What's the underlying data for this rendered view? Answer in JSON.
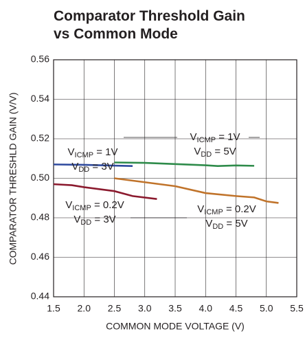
{
  "chart_data": {
    "type": "line",
    "title": [
      "Comparator Threshold Gain",
      "vs Common Mode"
    ],
    "x_label": "COMMON MODE VOLTAGE (V)",
    "y_label": "COMPARATOR THRESHLD GAIN (V/V)",
    "xlim": [
      1.5,
      5.5
    ],
    "xticks": [
      {
        "value": 1.5,
        "label": "1.5"
      },
      {
        "value": 2,
        "label": "2.0"
      },
      {
        "value": 2.5,
        "label": "2.5"
      },
      {
        "value": 3,
        "label": "3.0"
      },
      {
        "value": 3.5,
        "label": "3.5"
      },
      {
        "value": 4,
        "label": "4.0"
      },
      {
        "value": 4.5,
        "label": "4.5"
      },
      {
        "value": 5,
        "label": "5.0"
      },
      {
        "value": 5.5,
        "label": "5.5"
      }
    ],
    "ylim": [
      0.44,
      0.56
    ],
    "yticks": [
      0.44,
      0.46,
      0.48,
      {
        "value": 0.5,
        "label": "0.50"
      },
      0.52,
      0.54,
      0.56
    ],
    "grid": true,
    "series": [
      {
        "color": "#2e4a9e",
        "x": [
          1.5,
          2.0,
          2.5,
          2.8
        ],
        "values": [
          0.507,
          0.5068,
          0.5064,
          0.5062
        ]
      },
      {
        "color": "#8b1a2e",
        "x": [
          1.5,
          1.8,
          2.0,
          2.5,
          2.8,
          3.2
        ],
        "values": [
          0.497,
          0.4965,
          0.4955,
          0.4935,
          0.491,
          0.4895
        ]
      },
      {
        "color": "#2e8b4a",
        "x": [
          2.5,
          3.0,
          3.5,
          4.0,
          4.2,
          4.5,
          4.8
        ],
        "values": [
          0.508,
          0.5078,
          0.5072,
          0.5066,
          0.5062,
          0.5065,
          0.5063
        ]
      },
      {
        "color": "#c0732a",
        "x": [
          2.5,
          3.0,
          3.5,
          4.0,
          4.5,
          4.8,
          5.0,
          5.2
        ],
        "values": [
          0.5,
          0.498,
          0.496,
          0.4925,
          0.491,
          0.4903,
          0.4883,
          0.4875
        ]
      }
    ],
    "annotations": [
      [
        {
          "main": "V",
          "sub": "ICMP",
          "rest": " = 1V"
        },
        {
          "main": "V",
          "sub": "DD",
          "rest": " = 3V"
        }
      ],
      [
        {
          "main": "V",
          "sub": "ICMP",
          "rest": " = 1V"
        },
        {
          "main": "V",
          "sub": "DD",
          "rest": " = 5V"
        }
      ],
      [
        {
          "main": "V",
          "sub": "ICMP",
          "rest": " = 0.2V"
        },
        {
          "main": "V",
          "sub": "DD",
          "rest": " = 3V"
        }
      ],
      [
        {
          "main": "V",
          "sub": "ICMP",
          "rest": " = 0.2V"
        },
        {
          "main": "V",
          "sub": "DD",
          "rest": " = 5V"
        }
      ]
    ]
  }
}
